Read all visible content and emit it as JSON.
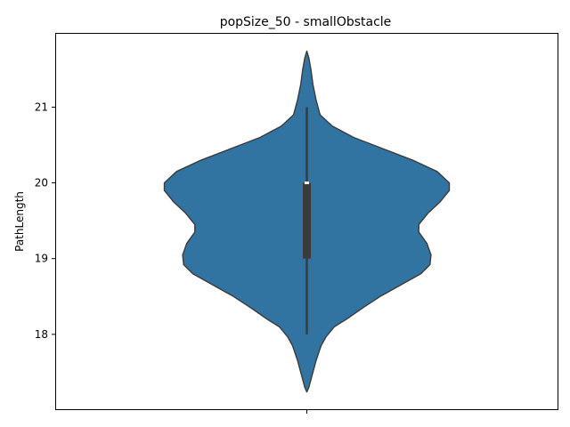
{
  "chart_data": {
    "type": "violin",
    "title": "popSize_50 - smallObstacle",
    "xlabel": "",
    "ylabel": "PathLength",
    "ylim": [
      17.0,
      21.98
    ],
    "yticks": [
      18,
      19,
      20,
      21
    ],
    "ytick_labels": [
      "18",
      "19",
      "20",
      "21"
    ],
    "grid": false,
    "colors": {
      "violin_fill": "#3274a1",
      "violin_edge": "#3b3b3b",
      "box": "#3b3b3b",
      "median": "#ffffff"
    },
    "summary": {
      "min": 18,
      "q1": 19,
      "median": 20,
      "q3": 20,
      "max": 21
    },
    "density_extent": [
      17.24,
      21.74
    ],
    "density": [
      {
        "y": 17.24,
        "d": 0.0
      },
      {
        "y": 17.3,
        "d": 0.02
      },
      {
        "y": 17.45,
        "d": 0.05
      },
      {
        "y": 17.65,
        "d": 0.09
      },
      {
        "y": 17.85,
        "d": 0.14
      },
      {
        "y": 17.97,
        "d": 0.19
      },
      {
        "y": 18.1,
        "d": 0.27
      },
      {
        "y": 18.2,
        "d": 0.39
      },
      {
        "y": 18.35,
        "d": 0.55
      },
      {
        "y": 18.5,
        "d": 0.72
      },
      {
        "y": 18.65,
        "d": 0.92
      },
      {
        "y": 18.8,
        "d": 1.12
      },
      {
        "y": 18.92,
        "d": 1.21
      },
      {
        "y": 19.05,
        "d": 1.22
      },
      {
        "y": 19.2,
        "d": 1.18
      },
      {
        "y": 19.35,
        "d": 1.1
      },
      {
        "y": 19.45,
        "d": 1.1
      },
      {
        "y": 19.6,
        "d": 1.19
      },
      {
        "y": 19.75,
        "d": 1.31
      },
      {
        "y": 19.9,
        "d": 1.4
      },
      {
        "y": 20.0,
        "d": 1.4
      },
      {
        "y": 20.15,
        "d": 1.28
      },
      {
        "y": 20.3,
        "d": 1.04
      },
      {
        "y": 20.45,
        "d": 0.75
      },
      {
        "y": 20.6,
        "d": 0.46
      },
      {
        "y": 20.75,
        "d": 0.25
      },
      {
        "y": 20.9,
        "d": 0.13
      },
      {
        "y": 21.1,
        "d": 0.09
      },
      {
        "y": 21.3,
        "d": 0.06
      },
      {
        "y": 21.5,
        "d": 0.04
      },
      {
        "y": 21.65,
        "d": 0.02
      },
      {
        "y": 21.74,
        "d": 0.0
      }
    ]
  }
}
